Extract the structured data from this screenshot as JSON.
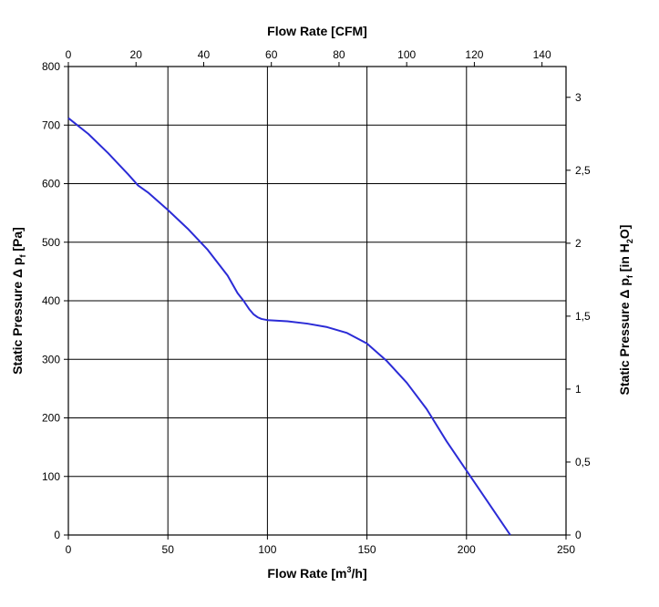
{
  "chart_data": {
    "type": "line",
    "x_bottom_label_parts": [
      "Flow Rate [m",
      "3",
      "/h]"
    ],
    "x_top_label": "Flow Rate [CFM]",
    "y_left_label_parts": [
      "Static Pressure ",
      "Δ",
      " p",
      "f",
      " [Pa]"
    ],
    "y_right_label_parts": [
      "Static Pressure ",
      "Δ",
      " p",
      "f",
      " [in H",
      "2",
      "O]"
    ],
    "x_bottom_ticks": [
      "0",
      "50",
      "100",
      "150",
      "200",
      "250"
    ],
    "x_bottom_range": [
      0,
      250
    ],
    "x_top_ticks": [
      "0",
      "20",
      "40",
      "60",
      "80",
      "100",
      "120",
      "140"
    ],
    "x_top_range": [
      0,
      147.1
    ],
    "y_left_ticks": [
      "0",
      "100",
      "200",
      "300",
      "400",
      "500",
      "600",
      "700",
      "800"
    ],
    "y_left_range": [
      0,
      800
    ],
    "y_right_ticks": [
      "0",
      "0,5",
      "1",
      "1,5",
      "2",
      "2,5",
      "3"
    ],
    "y_right_range": [
      0,
      3.211
    ],
    "grid": true,
    "line_color": "#2b2bd6",
    "series": [
      {
        "x": [
          0,
          10,
          20,
          30,
          35,
          40,
          50,
          60,
          70,
          80,
          85,
          88,
          91,
          93,
          95,
          97,
          100,
          110,
          120,
          130,
          140,
          150,
          160,
          170,
          180,
          190,
          200,
          210,
          218,
          222
        ],
        "y": [
          712,
          685,
          652,
          616,
          597,
          585,
          555,
          523,
          487,
          443,
          413,
          400,
          385,
          377,
          372,
          369,
          367,
          365,
          361,
          355,
          345,
          327,
          297,
          260,
          215,
          160,
          110,
          60,
          20,
          0
        ]
      }
    ]
  }
}
